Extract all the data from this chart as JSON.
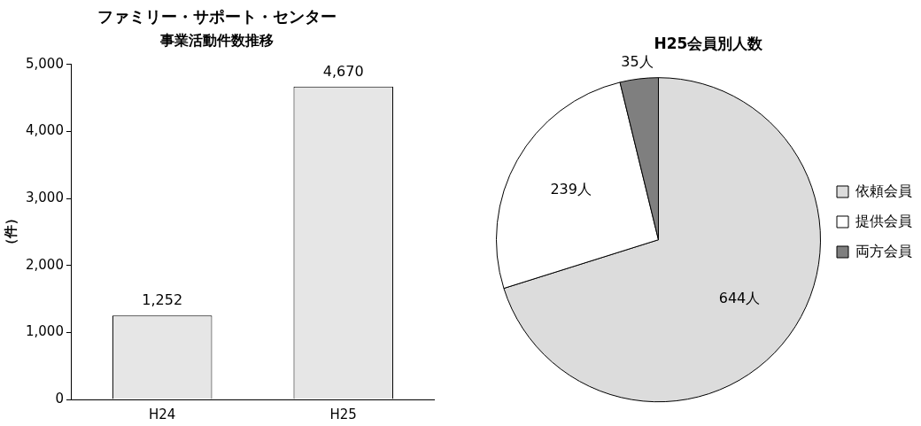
{
  "chart_data": [
    {
      "type": "bar",
      "title": "ファミリー・サポート・センター",
      "subtitle": "事業活動件数推移",
      "ylabel": "（件）",
      "categories": [
        "H24",
        "H25"
      ],
      "values": [
        1252,
        4670
      ],
      "value_labels": [
        "1,252",
        "4,670"
      ],
      "color": "#e6e6e6",
      "ylim": [
        0,
        5000
      ],
      "yticks": [
        0,
        {
          "value": 1000,
          "label": "1,000"
        },
        {
          "value": 2000,
          "label": "2,000"
        },
        {
          "value": 3000,
          "label": "3,000"
        },
        {
          "value": 4000,
          "label": "4,000"
        },
        {
          "value": 5000,
          "label": "5,000"
        }
      ],
      "grid": false,
      "legend": false
    },
    {
      "type": "pie",
      "title": "H25会員別人数",
      "categories": [
        "依頼会員",
        "提供会員",
        "両方会員"
      ],
      "values": [
        644,
        239,
        35
      ],
      "value_labels": [
        "644人",
        "239人",
        "35人"
      ],
      "colors": [
        "#dcdcdc",
        "#ffffff",
        "#7f7f7f"
      ],
      "legend": "right"
    }
  ]
}
